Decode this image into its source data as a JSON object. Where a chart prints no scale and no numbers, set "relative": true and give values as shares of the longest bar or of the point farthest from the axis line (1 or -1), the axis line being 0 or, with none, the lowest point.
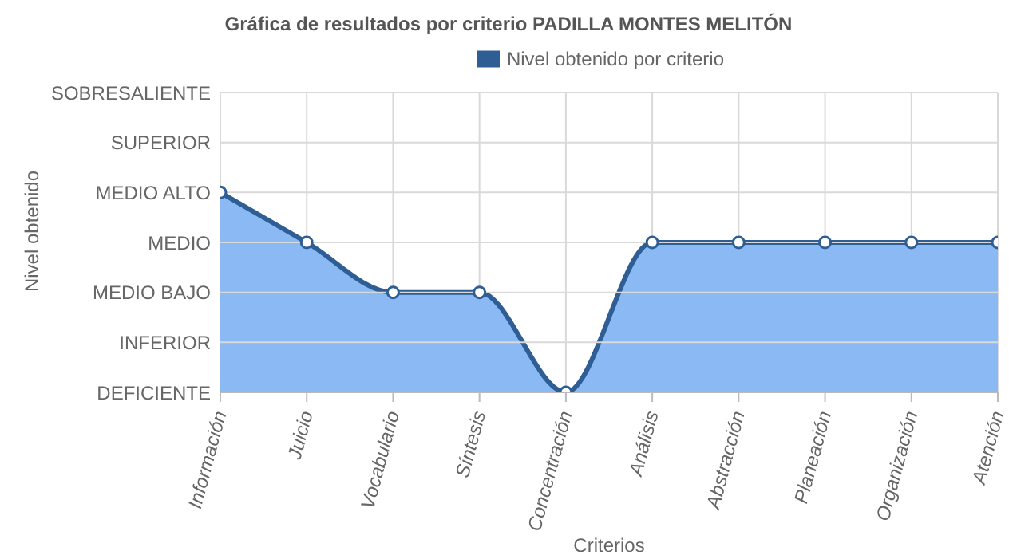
{
  "chart_data": {
    "type": "area",
    "title": "Gráfica de resultados por criterio PADILLA MONTES MELITÓN",
    "xlabel": "Criterios",
    "relative": true,
    "categories": [
      "Información",
      "Juicio",
      "Vocabulario",
      "Síntesis",
      "Concentración",
      "Análisis",
      "Abstracción",
      "Planeación",
      "Organización",
      "Atención"
    ],
    "series": [
      {
        "name": "Nivel obtenido por criterio",
        "color": "#2f5e95",
        "values": [
          1,
          0.75,
          0.5,
          0.5,
          0,
          0.75,
          0.75,
          0.75,
          0.75,
          0.75
        ]
      }
    ],
    "ylim": [
      0,
      1.5
    ],
    "annotations": [
      "Nivel obtenido",
      "DEFICIENTE",
      "INFERIOR",
      "MEDIO BAJO",
      "MEDIO",
      "MEDIO ALTO",
      "SUPERIOR",
      "SOBRESALIENTE"
    ],
    "grid": true,
    "legend": "top",
    "marker": "circle"
  }
}
